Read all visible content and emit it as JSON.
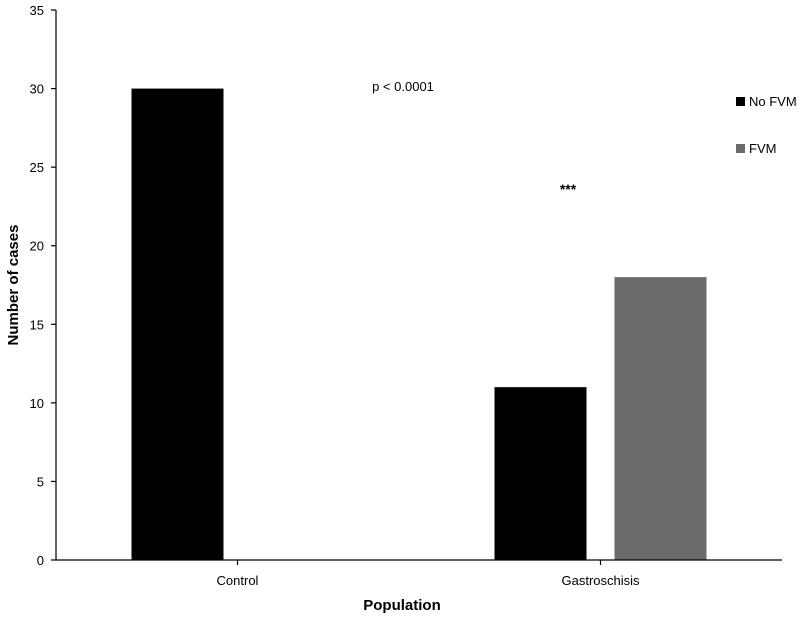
{
  "chart_data": {
    "type": "bar",
    "categories": [
      "Control",
      "Gastroschisis"
    ],
    "series": [
      {
        "name": "No FVM",
        "values": [
          30,
          11
        ],
        "color": "#000000"
      },
      {
        "name": "FVM",
        "values": [
          0,
          18
        ],
        "color": "#6b6b6b"
      }
    ],
    "xlabel": "Population",
    "ylabel": "Number of cases",
    "ylim": [
      0,
      35
    ],
    "yticks": [
      0,
      5,
      10,
      15,
      20,
      25,
      30,
      35
    ],
    "grid": false,
    "legend_position": "right",
    "annotations": {
      "p_value": "p < 0.0001",
      "significance": "***"
    }
  }
}
